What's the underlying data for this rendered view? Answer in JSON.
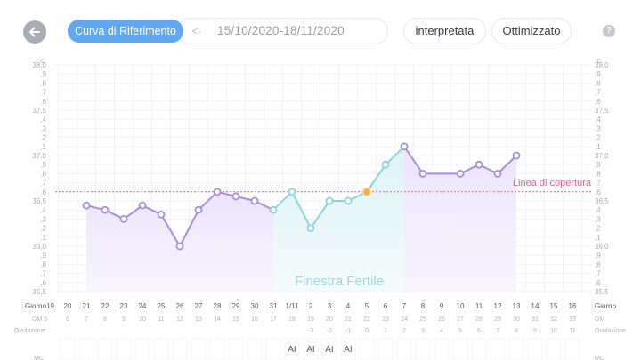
{
  "header": {
    "back_icon": "arrow-left-icon",
    "reference_curve_label": "Curva di Riferimento",
    "date_prev_icon": "chevron-left-icon",
    "date_range": "15/10/2020-18/11/2020",
    "interpreted_label": "interpretata",
    "optimized_label": "Ottimizzato",
    "help_icon": "?"
  },
  "chart_data": {
    "type": "line",
    "title": "",
    "ylabel": "°C",
    "ylim": [
      35.5,
      38.0
    ],
    "y_ticks_left": [
      "38,0",
      ",9",
      ",8",
      ",7",
      ",6",
      "37,5",
      ",4",
      ",3",
      ",2",
      ",1",
      "37,0",
      ",9",
      ",8",
      ",7",
      ",6",
      "36,5",
      ",4",
      ",3",
      ",2",
      ",1",
      "36,0",
      ",9",
      ",8",
      ",7",
      ",6",
      "35,5"
    ],
    "y_unit_left": "°C",
    "y_unit_right": "°C",
    "x_day_labels": [
      "20",
      "21",
      "22",
      "23",
      "24",
      "25",
      "26",
      "27",
      "28",
      "29",
      "30",
      "31",
      "1/11",
      "2",
      "3",
      "4",
      "5",
      "6",
      "7",
      "8",
      "9",
      "10",
      "11",
      "12",
      "13",
      "14",
      "15",
      "16"
    ],
    "x_cycle_day": [
      "6",
      "7",
      "8",
      "9",
      "10",
      "11",
      "12",
      "13",
      "14",
      "15",
      "16",
      "17",
      "18",
      "19",
      "20",
      "21",
      "22",
      "23",
      "24",
      "25",
      "26",
      "27",
      "28",
      "29",
      "30",
      "31",
      "32",
      "33"
    ],
    "x_ovulation_offset": [
      "",
      "",
      "",
      "",
      "",
      "",
      "",
      "",
      "",
      "",
      "",
      "",
      "",
      "-3",
      "-2",
      "-1",
      "0",
      "1",
      "2",
      "3",
      "4",
      "5",
      "6",
      "7",
      "8",
      "9",
      "10",
      "11"
    ],
    "row_label_day_left": "Giorno19",
    "row_label_day_right": "Giorno",
    "row_label_cycle_left": "GM 5",
    "row_label_cycle_right": "GM",
    "row_label_ovulation_left": "Ovulazione",
    "row_label_ovulation_right": "Ovulazione",
    "row_label_mc_left": "MC",
    "row_label_mc_right": "MC",
    "ai_marks": [
      "",
      "",
      "",
      "",
      "",
      "",
      "",
      "",
      "",
      "",
      "",
      "",
      "AI",
      "AI",
      "AI",
      "AI",
      "",
      "",
      "",
      "",
      "",
      "",
      "",
      "",
      "",
      "",
      "",
      ""
    ],
    "series": [
      {
        "name": "temperature",
        "values": [
          null,
          36.45,
          36.4,
          36.3,
          36.45,
          36.35,
          36.0,
          36.4,
          36.6,
          36.55,
          36.5,
          36.4,
          36.6,
          36.2,
          36.5,
          36.5,
          36.6,
          36.9,
          37.1,
          36.8,
          null,
          36.8,
          36.9,
          36.8,
          37.0,
          null,
          null,
          null
        ]
      }
    ],
    "coverline": {
      "value": 36.6,
      "label": "Linea di copertura",
      "color": "#e0609a"
    },
    "fertile_window": {
      "label": "Finestra Fertile",
      "from": "31",
      "to": "7"
    },
    "ovulation_day": "5",
    "colors": {
      "line": "#a58ee0",
      "fertile_line": "#8dd3dc",
      "ovulation_marker": "#f5b13d"
    }
  }
}
